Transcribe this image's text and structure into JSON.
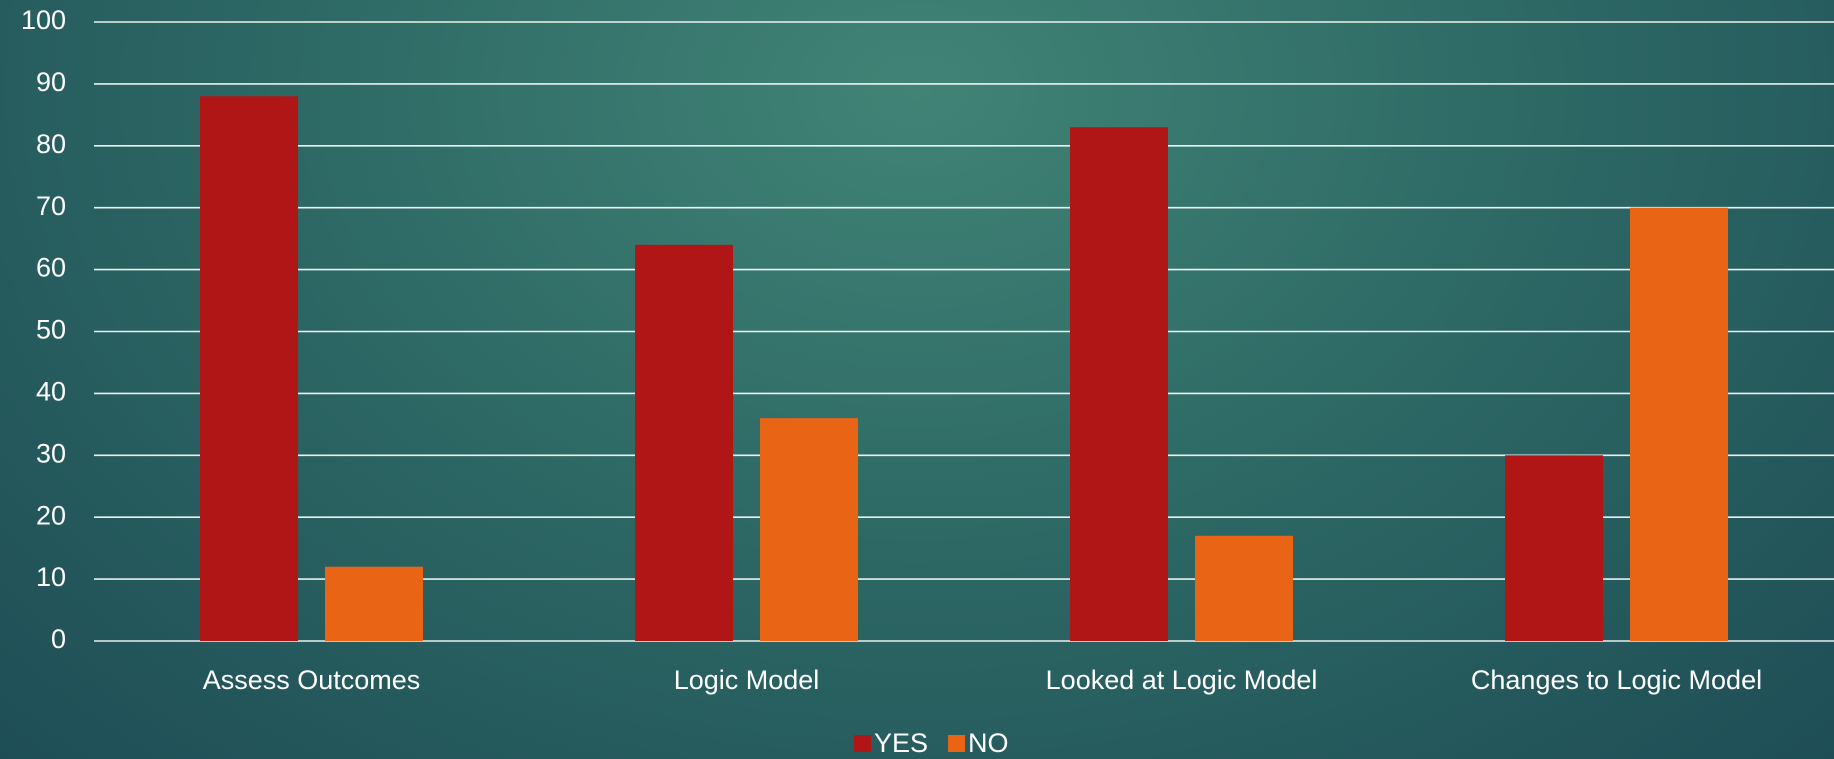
{
  "chart_data": {
    "type": "bar",
    "categories": [
      "Assess Outcomes",
      "Logic Model",
      "Looked at Logic Model",
      "Changes to Logic Model"
    ],
    "series": [
      {
        "name": "YES",
        "color": "#b01616",
        "values": [
          88,
          64,
          83,
          30
        ]
      },
      {
        "name": "NO",
        "color": "#e96414",
        "values": [
          12,
          36,
          17,
          70
        ]
      }
    ],
    "ylim": [
      0,
      100
    ],
    "yticks": [
      0,
      10,
      20,
      30,
      40,
      50,
      60,
      70,
      80,
      90,
      100
    ],
    "grid": true,
    "legend": "bottom"
  }
}
